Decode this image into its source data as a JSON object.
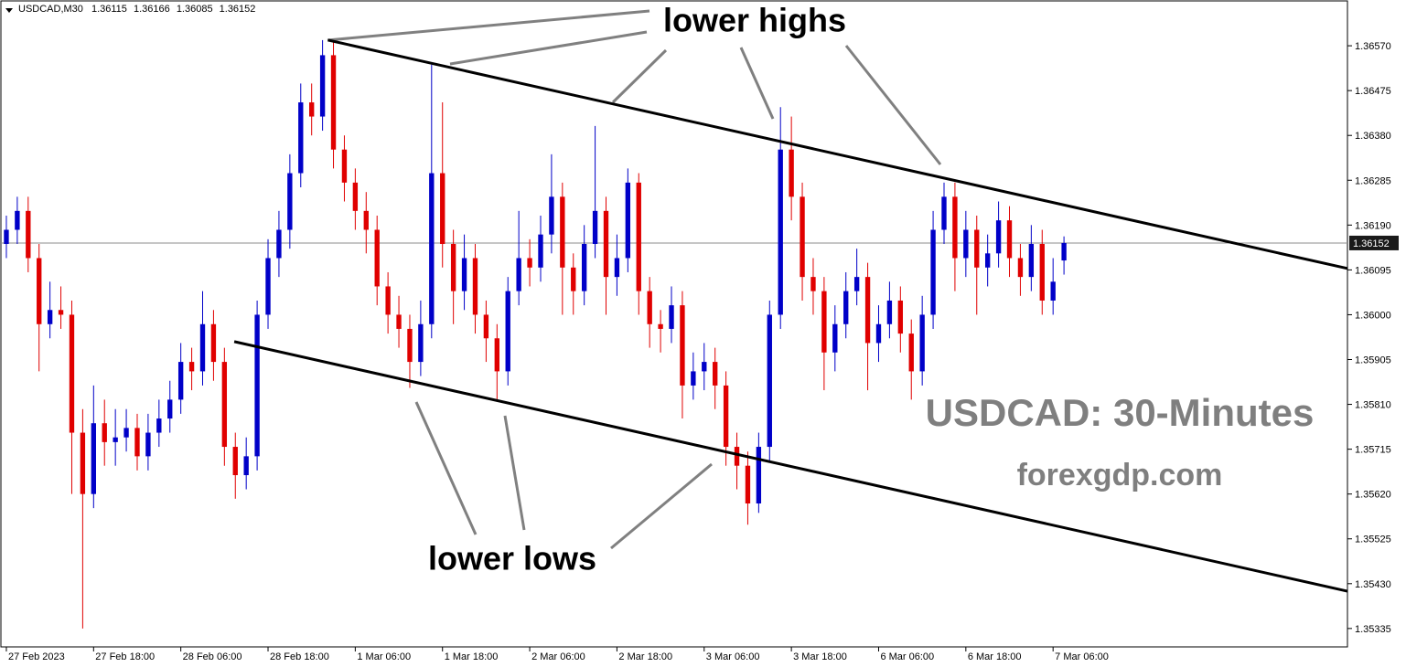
{
  "chart_data": {
    "type": "candlestick",
    "symbol": "USDCAD,M30",
    "header_ohlc": [
      1.36115,
      1.36166,
      1.36085,
      1.36152
    ],
    "series": [
      {
        "up_color": "#0000c8",
        "down_color": "#e00000",
        "open": [
          1.3615,
          1.3618,
          1.3622,
          1.3612,
          1.3598,
          1.3601,
          1.36,
          1.3575,
          1.3562,
          1.3577,
          1.3573,
          1.3574,
          1.3576,
          1.357,
          1.3575,
          1.3578,
          1.3582,
          1.359,
          1.3588,
          1.3598,
          1.359,
          1.3572,
          1.3566,
          1.357,
          1.36,
          1.3612,
          1.3618,
          1.363,
          1.3645,
          1.3642,
          1.3655,
          1.3635,
          1.3628,
          1.3622,
          1.3618,
          1.3606,
          1.36,
          1.3597,
          1.359,
          1.3598,
          1.363,
          1.3615,
          1.3605,
          1.3612,
          1.36,
          1.3595,
          1.3588,
          1.3605,
          1.3612,
          1.361,
          1.3617,
          1.3625,
          1.361,
          1.3605,
          1.3615,
          1.3622,
          1.3608,
          1.3612,
          1.3628,
          1.3605,
          1.3598,
          1.3597,
          1.3602,
          1.3585,
          1.3588,
          1.359,
          1.3585,
          1.3572,
          1.3568,
          1.356,
          1.3572,
          1.36,
          1.3635,
          1.3625,
          1.3608,
          1.3605,
          1.3592,
          1.3598,
          1.3605,
          1.3608,
          1.3594,
          1.3598,
          1.3603,
          1.3596,
          1.3588,
          1.36,
          1.3618,
          1.3625,
          1.3612,
          1.3618,
          1.361,
          1.3613,
          1.362,
          1.3612,
          1.3608,
          1.3615,
          1.3603,
          1.36115
        ],
        "high": [
          1.3621,
          1.3625,
          1.3625,
          1.3615,
          1.3607,
          1.3606,
          1.3603,
          1.358,
          1.3585,
          1.3582,
          1.358,
          1.358,
          1.3579,
          1.3579,
          1.3582,
          1.3586,
          1.3594,
          1.3593,
          1.3605,
          1.3601,
          1.3593,
          1.3575,
          1.3574,
          1.3603,
          1.3616,
          1.3622,
          1.3634,
          1.3649,
          1.3649,
          1.36582,
          1.3658,
          1.3638,
          1.3631,
          1.3626,
          1.3621,
          1.3609,
          1.3604,
          1.36,
          1.3603,
          1.3653,
          1.3645,
          1.3618,
          1.3617,
          1.3615,
          1.3603,
          1.3598,
          1.3608,
          1.3622,
          1.3616,
          1.3621,
          1.3634,
          1.3628,
          1.3613,
          1.3619,
          1.364,
          1.3625,
          1.3617,
          1.3631,
          1.363,
          1.3608,
          1.3601,
          1.3606,
          1.3605,
          1.3592,
          1.3594,
          1.3593,
          1.3588,
          1.3575,
          1.3571,
          1.3575,
          1.3603,
          1.3644,
          1.3642,
          1.3628,
          1.3612,
          1.3608,
          1.3602,
          1.3609,
          1.3614,
          1.3611,
          1.3602,
          1.3607,
          1.3606,
          1.3599,
          1.3604,
          1.3622,
          1.3628,
          1.3628,
          1.3622,
          1.3621,
          1.3617,
          1.3624,
          1.3623,
          1.3615,
          1.3619,
          1.3618,
          1.3612,
          1.36166
        ],
        "low": [
          1.3612,
          1.3615,
          1.3609,
          1.3588,
          1.3595,
          1.3597,
          1.3562,
          1.35335,
          1.3559,
          1.3568,
          1.3568,
          1.3571,
          1.3567,
          1.3567,
          1.3572,
          1.3575,
          1.3579,
          1.3584,
          1.3585,
          1.3586,
          1.3568,
          1.3561,
          1.3563,
          1.3567,
          1.3597,
          1.3608,
          1.3614,
          1.3627,
          1.3638,
          1.3639,
          1.3631,
          1.3624,
          1.3618,
          1.3613,
          1.3602,
          1.3596,
          1.3593,
          1.35845,
          1.3587,
          1.3595,
          1.361,
          1.3598,
          1.3601,
          1.3596,
          1.359,
          1.3582,
          1.3585,
          1.3602,
          1.3606,
          1.3607,
          1.3613,
          1.36,
          1.36,
          1.3602,
          1.3612,
          1.36,
          1.3604,
          1.3609,
          1.36,
          1.3593,
          1.3592,
          1.3594,
          1.3578,
          1.3582,
          1.3584,
          1.358,
          1.3568,
          1.3563,
          1.35555,
          1.3558,
          1.3569,
          1.3597,
          1.362,
          1.3603,
          1.36,
          1.3584,
          1.3588,
          1.3595,
          1.3602,
          1.3584,
          1.359,
          1.3595,
          1.3592,
          1.3582,
          1.3585,
          1.3597,
          1.3615,
          1.3605,
          1.3608,
          1.36,
          1.3606,
          1.361,
          1.3608,
          1.3604,
          1.3605,
          1.36,
          1.36,
          1.36085
        ],
        "close": [
          1.3618,
          1.3622,
          1.3612,
          1.3598,
          1.3601,
          1.36,
          1.3575,
          1.3562,
          1.3577,
          1.3573,
          1.3574,
          1.3576,
          1.357,
          1.3575,
          1.3578,
          1.3582,
          1.359,
          1.3588,
          1.3598,
          1.359,
          1.3572,
          1.3566,
          1.357,
          1.36,
          1.3612,
          1.3618,
          1.363,
          1.3645,
          1.3642,
          1.3655,
          1.3635,
          1.3628,
          1.3622,
          1.3618,
          1.3606,
          1.36,
          1.3597,
          1.359,
          1.3598,
          1.363,
          1.3615,
          1.3605,
          1.3612,
          1.36,
          1.3595,
          1.3588,
          1.3605,
          1.3612,
          1.361,
          1.3617,
          1.3625,
          1.361,
          1.3605,
          1.3615,
          1.3622,
          1.3608,
          1.3612,
          1.3628,
          1.3605,
          1.3598,
          1.3597,
          1.3602,
          1.3585,
          1.3588,
          1.359,
          1.3585,
          1.3572,
          1.3568,
          1.356,
          1.3572,
          1.36,
          1.3635,
          1.3625,
          1.3608,
          1.3605,
          1.3592,
          1.3598,
          1.3605,
          1.3608,
          1.3594,
          1.3598,
          1.3603,
          1.3596,
          1.3588,
          1.36,
          1.3618,
          1.3625,
          1.3612,
          1.3618,
          1.361,
          1.3613,
          1.362,
          1.3612,
          1.3608,
          1.3615,
          1.3603,
          1.3607,
          1.36152
        ]
      }
    ],
    "xlim": [
      -0.5,
      123
    ],
    "xticks": [
      {
        "value": 0,
        "label": "27 Feb 2023"
      },
      {
        "value": 8,
        "label": "27 Feb 18:00"
      },
      {
        "value": 16,
        "label": "28 Feb 06:00"
      },
      {
        "value": 24,
        "label": "28 Feb 18:00"
      },
      {
        "value": 32,
        "label": "1 Mar 06:00"
      },
      {
        "value": 40,
        "label": "1 Mar 18:00"
      },
      {
        "value": 48,
        "label": "2 Mar 06:00"
      },
      {
        "value": 56,
        "label": "2 Mar 18:00"
      },
      {
        "value": 64,
        "label": "3 Mar 06:00"
      },
      {
        "value": 72,
        "label": "3 Mar 18:00"
      },
      {
        "value": 80,
        "label": "6 Mar 06:00"
      },
      {
        "value": 88,
        "label": "6 Mar 18:00"
      },
      {
        "value": 96,
        "label": "7 Mar 06:00"
      }
    ],
    "ylim": [
      1.35296,
      1.36667
    ],
    "yticks": [
      {
        "value": 1.3657,
        "label": "1.36570"
      },
      {
        "value": 1.36475,
        "label": "1.36475"
      },
      {
        "value": 1.3638,
        "label": "1.36380"
      },
      {
        "value": 1.36285,
        "label": "1.36285"
      },
      {
        "value": 1.3619,
        "label": "1.36190"
      },
      {
        "value": 1.36095,
        "label": "1.36095"
      },
      {
        "value": 1.36,
        "label": "1.36000"
      },
      {
        "value": 1.35905,
        "label": "1.35905"
      },
      {
        "value": 1.3581,
        "label": "1.35810"
      },
      {
        "value": 1.35715,
        "label": "1.35715"
      },
      {
        "value": 1.3562,
        "label": "1.35620"
      },
      {
        "value": 1.35525,
        "label": "1.35525"
      },
      {
        "value": 1.3543,
        "label": "1.35430"
      },
      {
        "value": 1.35335,
        "label": "1.35335"
      }
    ],
    "last_price": {
      "value": 1.36152,
      "label": "1.36152"
    },
    "trendlines": [
      {
        "x": [
          29.5,
          123
        ],
        "y": [
          1.36582,
          1.36098
        ]
      },
      {
        "x": [
          20.9,
          123
        ],
        "y": [
          1.35943,
          1.35414
        ]
      }
    ],
    "annotations": [
      "lower highs",
      "lower lows"
    ],
    "watermark_title": "USDCAD: 30-Minutes",
    "watermark_site": "forexgdp.com"
  }
}
